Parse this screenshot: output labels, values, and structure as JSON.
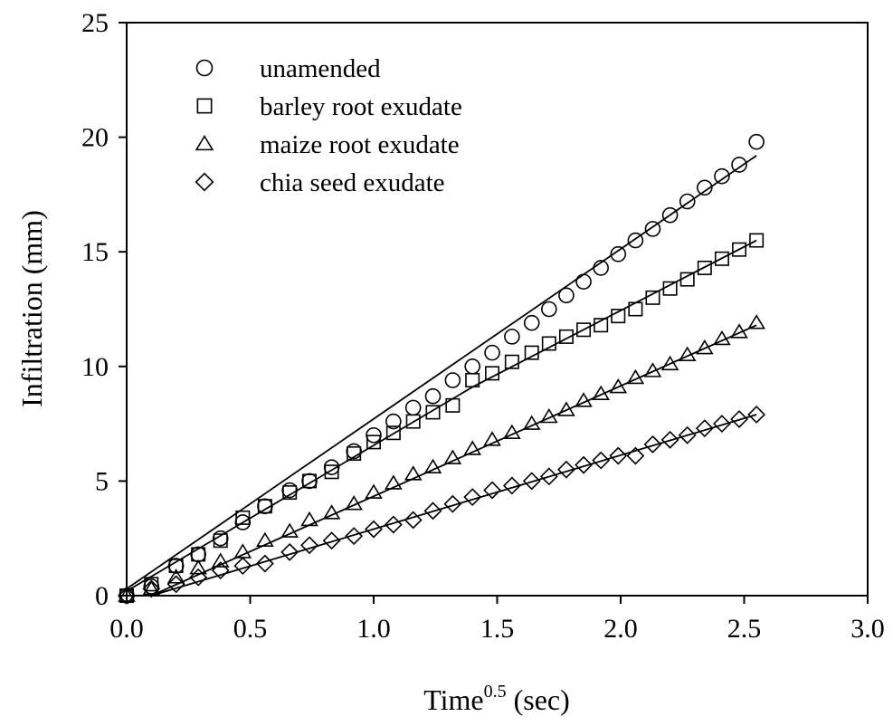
{
  "chart_data": {
    "type": "scatter",
    "xlabel": "Time",
    "xlabel_superscript": "0.5",
    "xlabel_unit": " (sec)",
    "ylabel": "Infiltration (mm)",
    "xlim": [
      0,
      3.0
    ],
    "ylim": [
      0,
      25
    ],
    "x_ticks": [
      "0.0",
      "0.5",
      "1.0",
      "1.5",
      "2.0",
      "2.5",
      "3.0"
    ],
    "y_ticks": [
      "0",
      "5",
      "10",
      "15",
      "20",
      "25"
    ],
    "grid": false,
    "legend_position": "top-left",
    "series": [
      {
        "name": "unamended",
        "marker": "circle",
        "x": [
          0,
          0.1,
          0.2,
          0.29,
          0.38,
          0.47,
          0.56,
          0.66,
          0.74,
          0.83,
          0.92,
          1.0,
          1.08,
          1.16,
          1.24,
          1.32,
          1.4,
          1.48,
          1.56,
          1.64,
          1.71,
          1.78,
          1.85,
          1.92,
          1.99,
          2.06,
          2.13,
          2.2,
          2.27,
          2.34,
          2.41,
          2.48,
          2.55
        ],
        "y": [
          0,
          0.4,
          1.3,
          1.8,
          2.5,
          3.2,
          3.9,
          4.6,
          5.0,
          5.6,
          6.3,
          7.0,
          7.6,
          8.2,
          8.7,
          9.4,
          10.0,
          10.6,
          11.3,
          11.9,
          12.5,
          13.1,
          13.7,
          14.3,
          14.9,
          15.5,
          16.0,
          16.6,
          17.2,
          17.8,
          18.3,
          18.8,
          19.8
        ]
      },
      {
        "name": "barley root exudate",
        "marker": "square",
        "x": [
          0,
          0.1,
          0.2,
          0.29,
          0.38,
          0.47,
          0.56,
          0.66,
          0.74,
          0.83,
          0.92,
          1.0,
          1.08,
          1.16,
          1.24,
          1.32,
          1.4,
          1.48,
          1.56,
          1.64,
          1.71,
          1.78,
          1.85,
          1.92,
          1.99,
          2.06,
          2.13,
          2.2,
          2.27,
          2.34,
          2.41,
          2.48,
          2.55
        ],
        "y": [
          0,
          0.5,
          1.3,
          1.8,
          2.4,
          3.4,
          3.9,
          4.5,
          5.0,
          5.4,
          6.2,
          6.7,
          7.1,
          7.6,
          8.0,
          8.3,
          9.4,
          9.7,
          10.2,
          10.6,
          11.0,
          11.3,
          11.6,
          11.8,
          12.2,
          12.5,
          13.0,
          13.4,
          13.8,
          14.3,
          14.7,
          15.1,
          15.5
        ]
      },
      {
        "name": "maize root exudate",
        "marker": "triangle",
        "x": [
          0,
          0.1,
          0.2,
          0.29,
          0.38,
          0.47,
          0.56,
          0.66,
          0.74,
          0.83,
          0.92,
          1.0,
          1.08,
          1.16,
          1.24,
          1.32,
          1.4,
          1.48,
          1.56,
          1.64,
          1.71,
          1.78,
          1.85,
          1.92,
          1.99,
          2.06,
          2.13,
          2.2,
          2.27,
          2.34,
          2.41,
          2.48,
          2.55
        ],
        "y": [
          0,
          0.3,
          0.8,
          1.2,
          1.5,
          1.9,
          2.4,
          2.8,
          3.3,
          3.6,
          4.0,
          4.5,
          4.9,
          5.3,
          5.6,
          6.0,
          6.4,
          6.8,
          7.1,
          7.5,
          7.8,
          8.1,
          8.5,
          8.8,
          9.1,
          9.5,
          9.8,
          10.1,
          10.5,
          10.8,
          11.2,
          11.5,
          11.9
        ]
      },
      {
        "name": "chia seed exudate",
        "marker": "diamond",
        "x": [
          0,
          0.1,
          0.2,
          0.29,
          0.38,
          0.47,
          0.56,
          0.66,
          0.74,
          0.83,
          0.92,
          1.0,
          1.08,
          1.16,
          1.24,
          1.32,
          1.4,
          1.48,
          1.56,
          1.64,
          1.71,
          1.78,
          1.85,
          1.92,
          1.99,
          2.06,
          2.13,
          2.2,
          2.27,
          2.34,
          2.41,
          2.48,
          2.55
        ],
        "y": [
          0,
          0.3,
          0.5,
          0.8,
          1.1,
          1.3,
          1.4,
          1.9,
          2.2,
          2.4,
          2.6,
          2.9,
          3.1,
          3.3,
          3.7,
          4.0,
          4.3,
          4.6,
          4.8,
          5.0,
          5.2,
          5.5,
          5.7,
          5.9,
          6.1,
          6.1,
          6.6,
          6.8,
          7.0,
          7.3,
          7.5,
          7.7,
          7.9
        ]
      }
    ],
    "fit_lines": [
      {
        "series": "unamended",
        "x": [
          0,
          2.55
        ],
        "y": [
          0.3,
          19.2
        ]
      },
      {
        "series": "barley root exudate",
        "x": [
          0,
          1.4,
          2.55
        ],
        "y": [
          0.2,
          9.1,
          15.5
        ]
      },
      {
        "series": "maize root exudate",
        "x": [
          0.1,
          2.55
        ],
        "y": [
          0,
          11.8
        ]
      },
      {
        "series": "chia seed exudate",
        "x": [
          0.1,
          2.55
        ],
        "y": [
          0,
          7.9
        ]
      }
    ]
  }
}
